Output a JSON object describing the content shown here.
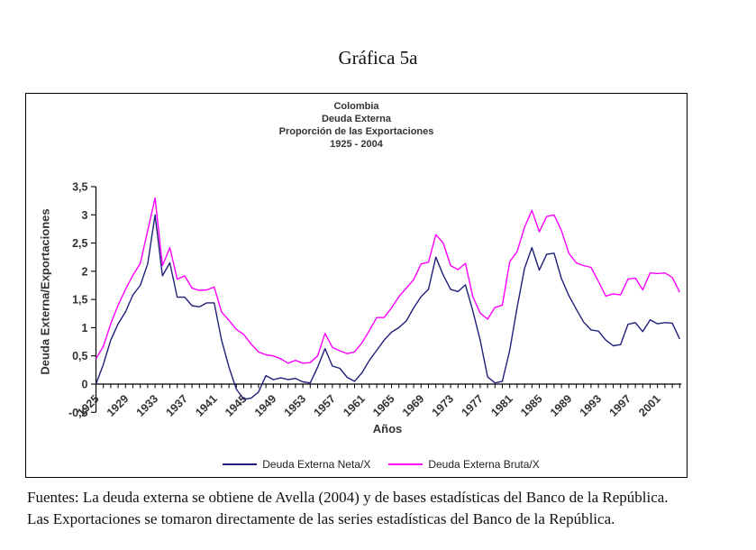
{
  "page": {
    "title": "Gráfica 5a",
    "footer_lines": [
      "Fuentes: La deuda externa se obtiene de Avella (2004) y de bases estadísticas del Banco de la República.",
      "Las Exportaciones se tomaron directamente de las series estadísticas del Banco de la República."
    ]
  },
  "chart_data": {
    "type": "line",
    "title_lines": [
      "Colombia",
      "Deuda Externa",
      "Proporción de las Exportaciones",
      "1925 - 2004"
    ],
    "xlabel": "Años",
    "ylabel": "Deuda Externa/Exportaciones",
    "x_start": 1925,
    "x_end": 2004,
    "ylim": [
      -0.5,
      3.5
    ],
    "grid": false,
    "legend_position": "bottom",
    "y_ticks": [
      3.5,
      3,
      2.5,
      2,
      1.5,
      1,
      0.5,
      0,
      -0.5
    ],
    "y_tick_labels": [
      "3,5",
      "3",
      "2,5",
      "2",
      "1,5",
      "1",
      "0,5",
      "0",
      "-0,5"
    ],
    "x_tick_step": 4,
    "x_tick_labels": [
      "1925",
      "1929",
      "1933",
      "1937",
      "1941",
      "1945",
      "1949",
      "1953",
      "1957",
      "1961",
      "1965",
      "1969",
      "1973",
      "1977",
      "1981",
      "1985",
      "1989",
      "1993",
      "1997",
      "2001"
    ],
    "series": [
      {
        "name": "Deuda Externa Neta/X",
        "color": "#1f1f7a",
        "values": [
          0.0,
          0.35,
          0.78,
          1.07,
          1.28,
          1.58,
          1.75,
          2.13,
          3.0,
          1.92,
          2.15,
          1.54,
          1.54,
          1.39,
          1.37,
          1.44,
          1.44,
          0.78,
          0.3,
          -0.09,
          -0.27,
          -0.25,
          -0.14,
          0.15,
          0.08,
          0.11,
          0.08,
          0.1,
          0.04,
          0.02,
          0.3,
          0.63,
          0.32,
          0.28,
          0.12,
          0.05,
          0.2,
          0.42,
          0.6,
          0.78,
          0.92,
          1.0,
          1.12,
          1.35,
          1.55,
          1.68,
          2.25,
          1.93,
          1.68,
          1.64,
          1.76,
          1.3,
          0.78,
          0.13,
          0.02,
          0.05,
          0.6,
          1.36,
          2.05,
          2.42,
          2.02,
          2.3,
          2.32,
          1.87,
          1.57,
          1.33,
          1.1,
          0.96,
          0.94,
          0.78,
          0.68,
          0.7,
          1.06,
          1.09,
          0.93,
          1.14,
          1.07,
          1.09,
          1.08,
          0.8
        ]
      },
      {
        "name": "Deuda Externa Bruta/X",
        "color": "#ff00ff",
        "values": [
          0.45,
          0.67,
          1.07,
          1.4,
          1.68,
          1.93,
          2.14,
          2.72,
          3.3,
          2.1,
          2.42,
          1.86,
          1.92,
          1.7,
          1.66,
          1.67,
          1.72,
          1.28,
          1.13,
          0.97,
          0.88,
          0.71,
          0.57,
          0.52,
          0.5,
          0.45,
          0.37,
          0.42,
          0.37,
          0.38,
          0.5,
          0.9,
          0.65,
          0.59,
          0.54,
          0.57,
          0.73,
          0.95,
          1.18,
          1.18,
          1.35,
          1.55,
          1.7,
          1.85,
          2.13,
          2.16,
          2.65,
          2.5,
          2.1,
          2.03,
          2.14,
          1.55,
          1.26,
          1.15,
          1.36,
          1.4,
          2.17,
          2.35,
          2.78,
          3.08,
          2.7,
          2.97,
          3.0,
          2.72,
          2.32,
          2.15,
          2.1,
          2.07,
          1.82,
          1.56,
          1.6,
          1.58,
          1.86,
          1.88,
          1.67,
          1.97,
          1.96,
          1.97,
          1.89,
          1.63
        ]
      }
    ]
  }
}
